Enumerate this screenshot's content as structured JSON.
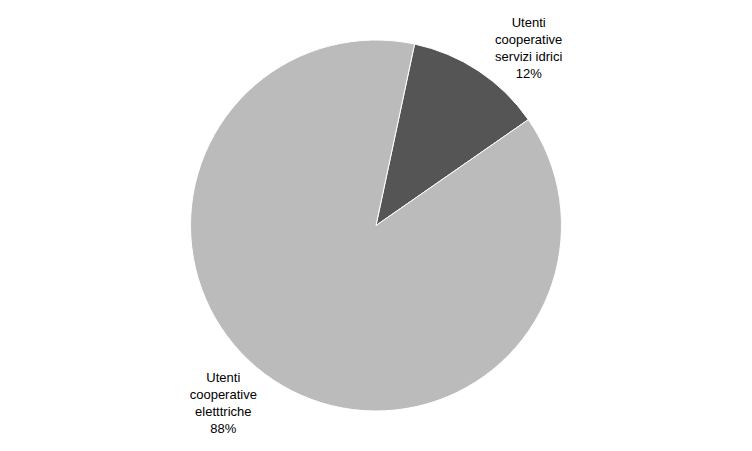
{
  "chart_data": {
    "type": "pie",
    "categories": [
      "Utenti\ncooperative\nservizi idrici",
      "Utenti\ncooperative\neletttriche"
    ],
    "values": [
      12,
      88
    ],
    "value_labels": [
      "12%",
      "88%"
    ],
    "colors": [
      "#555555",
      "#bbbbbb"
    ],
    "data_labels": true
  }
}
